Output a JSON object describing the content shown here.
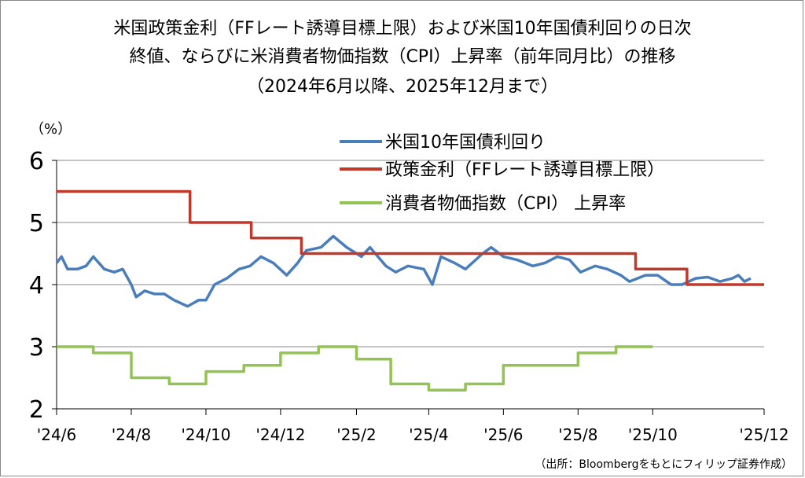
{
  "title": {
    "line1": "米国政策金利（FFレート誘導目標上限）および米国10年国債利回りの日次",
    "line2": "終値、ならびに米消費者物価指数（CPI）上昇率（前年同月比）の推移",
    "line3": "（2024年6月以降、2025年12月まで）"
  },
  "unit_label": "（%）",
  "source": "（出所：Bloombergをもとにフィリップ証券作成）",
  "chart_data": {
    "type": "line",
    "ylim": [
      2,
      6
    ],
    "yticks": [
      "6",
      "5",
      "4",
      "3",
      "2"
    ],
    "xticks": [
      "'24/6",
      "'24/8",
      "'24/10",
      "'24/12",
      "'25/2",
      "'25/4",
      "'25/6",
      "'25/8",
      "'25/10",
      "'25/12"
    ],
    "grid": true,
    "legend_position": "top-right",
    "series": [
      {
        "name": "米国10年国債利回り",
        "color": "#4a7ebb",
        "points": [
          [
            "2024-06-01",
            4.35
          ],
          [
            "2024-06-05",
            4.45
          ],
          [
            "2024-06-10",
            4.25
          ],
          [
            "2024-06-18",
            4.25
          ],
          [
            "2024-06-25",
            4.3
          ],
          [
            "2024-07-01",
            4.45
          ],
          [
            "2024-07-10",
            4.25
          ],
          [
            "2024-07-18",
            4.2
          ],
          [
            "2024-07-25",
            4.25
          ],
          [
            "2024-08-01",
            4.0
          ],
          [
            "2024-08-05",
            3.8
          ],
          [
            "2024-08-12",
            3.9
          ],
          [
            "2024-08-20",
            3.85
          ],
          [
            "2024-08-28",
            3.85
          ],
          [
            "2024-09-05",
            3.75
          ],
          [
            "2024-09-16",
            3.65
          ],
          [
            "2024-09-25",
            3.75
          ],
          [
            "2024-10-01",
            3.75
          ],
          [
            "2024-10-08",
            4.0
          ],
          [
            "2024-10-18",
            4.1
          ],
          [
            "2024-10-28",
            4.25
          ],
          [
            "2024-11-06",
            4.3
          ],
          [
            "2024-11-15",
            4.45
          ],
          [
            "2024-11-25",
            4.35
          ],
          [
            "2024-12-06",
            4.15
          ],
          [
            "2024-12-15",
            4.35
          ],
          [
            "2024-12-22",
            4.55
          ],
          [
            "2025-01-03",
            4.6
          ],
          [
            "2025-01-13",
            4.78
          ],
          [
            "2025-01-24",
            4.6
          ],
          [
            "2025-02-05",
            4.45
          ],
          [
            "2025-02-12",
            4.6
          ],
          [
            "2025-02-25",
            4.3
          ],
          [
            "2025-03-05",
            4.2
          ],
          [
            "2025-03-15",
            4.3
          ],
          [
            "2025-03-28",
            4.25
          ],
          [
            "2025-04-04",
            4.0
          ],
          [
            "2025-04-11",
            4.45
          ],
          [
            "2025-04-22",
            4.35
          ],
          [
            "2025-05-01",
            4.25
          ],
          [
            "2025-05-15",
            4.5
          ],
          [
            "2025-05-22",
            4.6
          ],
          [
            "2025-06-01",
            4.45
          ],
          [
            "2025-06-12",
            4.4
          ],
          [
            "2025-06-25",
            4.3
          ],
          [
            "2025-07-05",
            4.35
          ],
          [
            "2025-07-15",
            4.45
          ],
          [
            "2025-07-25",
            4.4
          ],
          [
            "2025-08-03",
            4.2
          ],
          [
            "2025-08-15",
            4.3
          ],
          [
            "2025-08-25",
            4.25
          ],
          [
            "2025-09-05",
            4.15
          ],
          [
            "2025-09-12",
            4.05
          ],
          [
            "2025-09-25",
            4.15
          ],
          [
            "2025-10-05",
            4.15
          ],
          [
            "2025-10-16",
            4.0
          ],
          [
            "2025-10-25",
            4.0
          ],
          [
            "2025-11-05",
            4.1
          ],
          [
            "2025-11-15",
            4.12
          ],
          [
            "2025-11-25",
            4.05
          ],
          [
            "2025-12-05",
            4.1
          ],
          [
            "2025-12-10",
            4.15
          ],
          [
            "2025-12-15",
            4.05
          ],
          [
            "2025-12-20",
            4.1
          ]
        ]
      },
      {
        "name": "政策金利（FFレート誘導目標上限）",
        "color": "#c0392b",
        "points": [
          [
            "2024-06-01",
            5.5
          ],
          [
            "2024-09-18",
            5.5
          ],
          [
            "2024-09-18",
            5.0
          ],
          [
            "2024-11-07",
            5.0
          ],
          [
            "2024-11-07",
            4.75
          ],
          [
            "2024-12-18",
            4.75
          ],
          [
            "2024-12-18",
            4.5
          ],
          [
            "2025-09-17",
            4.5
          ],
          [
            "2025-09-17",
            4.25
          ],
          [
            "2025-10-29",
            4.25
          ],
          [
            "2025-10-29",
            4.0
          ],
          [
            "2025-12-31",
            4.0
          ]
        ]
      },
      {
        "name": "消費者物価指数（CPI） 上昇率",
        "color": "#92c353",
        "points": [
          [
            "2024-06-01",
            3.0
          ],
          [
            "2024-07-01",
            3.0
          ],
          [
            "2024-07-01",
            2.9
          ],
          [
            "2024-08-01",
            2.9
          ],
          [
            "2024-08-01",
            2.5
          ],
          [
            "2024-09-01",
            2.5
          ],
          [
            "2024-09-01",
            2.4
          ],
          [
            "2024-10-01",
            2.4
          ],
          [
            "2024-10-01",
            2.6
          ],
          [
            "2024-11-01",
            2.6
          ],
          [
            "2024-11-01",
            2.7
          ],
          [
            "2024-12-01",
            2.7
          ],
          [
            "2024-12-01",
            2.9
          ],
          [
            "2025-01-01",
            2.9
          ],
          [
            "2025-01-01",
            3.0
          ],
          [
            "2025-02-01",
            3.0
          ],
          [
            "2025-02-01",
            2.8
          ],
          [
            "2025-03-01",
            2.8
          ],
          [
            "2025-03-01",
            2.4
          ],
          [
            "2025-04-01",
            2.4
          ],
          [
            "2025-04-01",
            2.3
          ],
          [
            "2025-05-01",
            2.3
          ],
          [
            "2025-05-01",
            2.4
          ],
          [
            "2025-06-01",
            2.4
          ],
          [
            "2025-06-01",
            2.7
          ],
          [
            "2025-07-01",
            2.7
          ],
          [
            "2025-08-01",
            2.7
          ],
          [
            "2025-08-01",
            2.9
          ],
          [
            "2025-09-01",
            2.9
          ],
          [
            "2025-09-01",
            3.0
          ],
          [
            "2025-10-01",
            3.0
          ]
        ]
      }
    ]
  }
}
